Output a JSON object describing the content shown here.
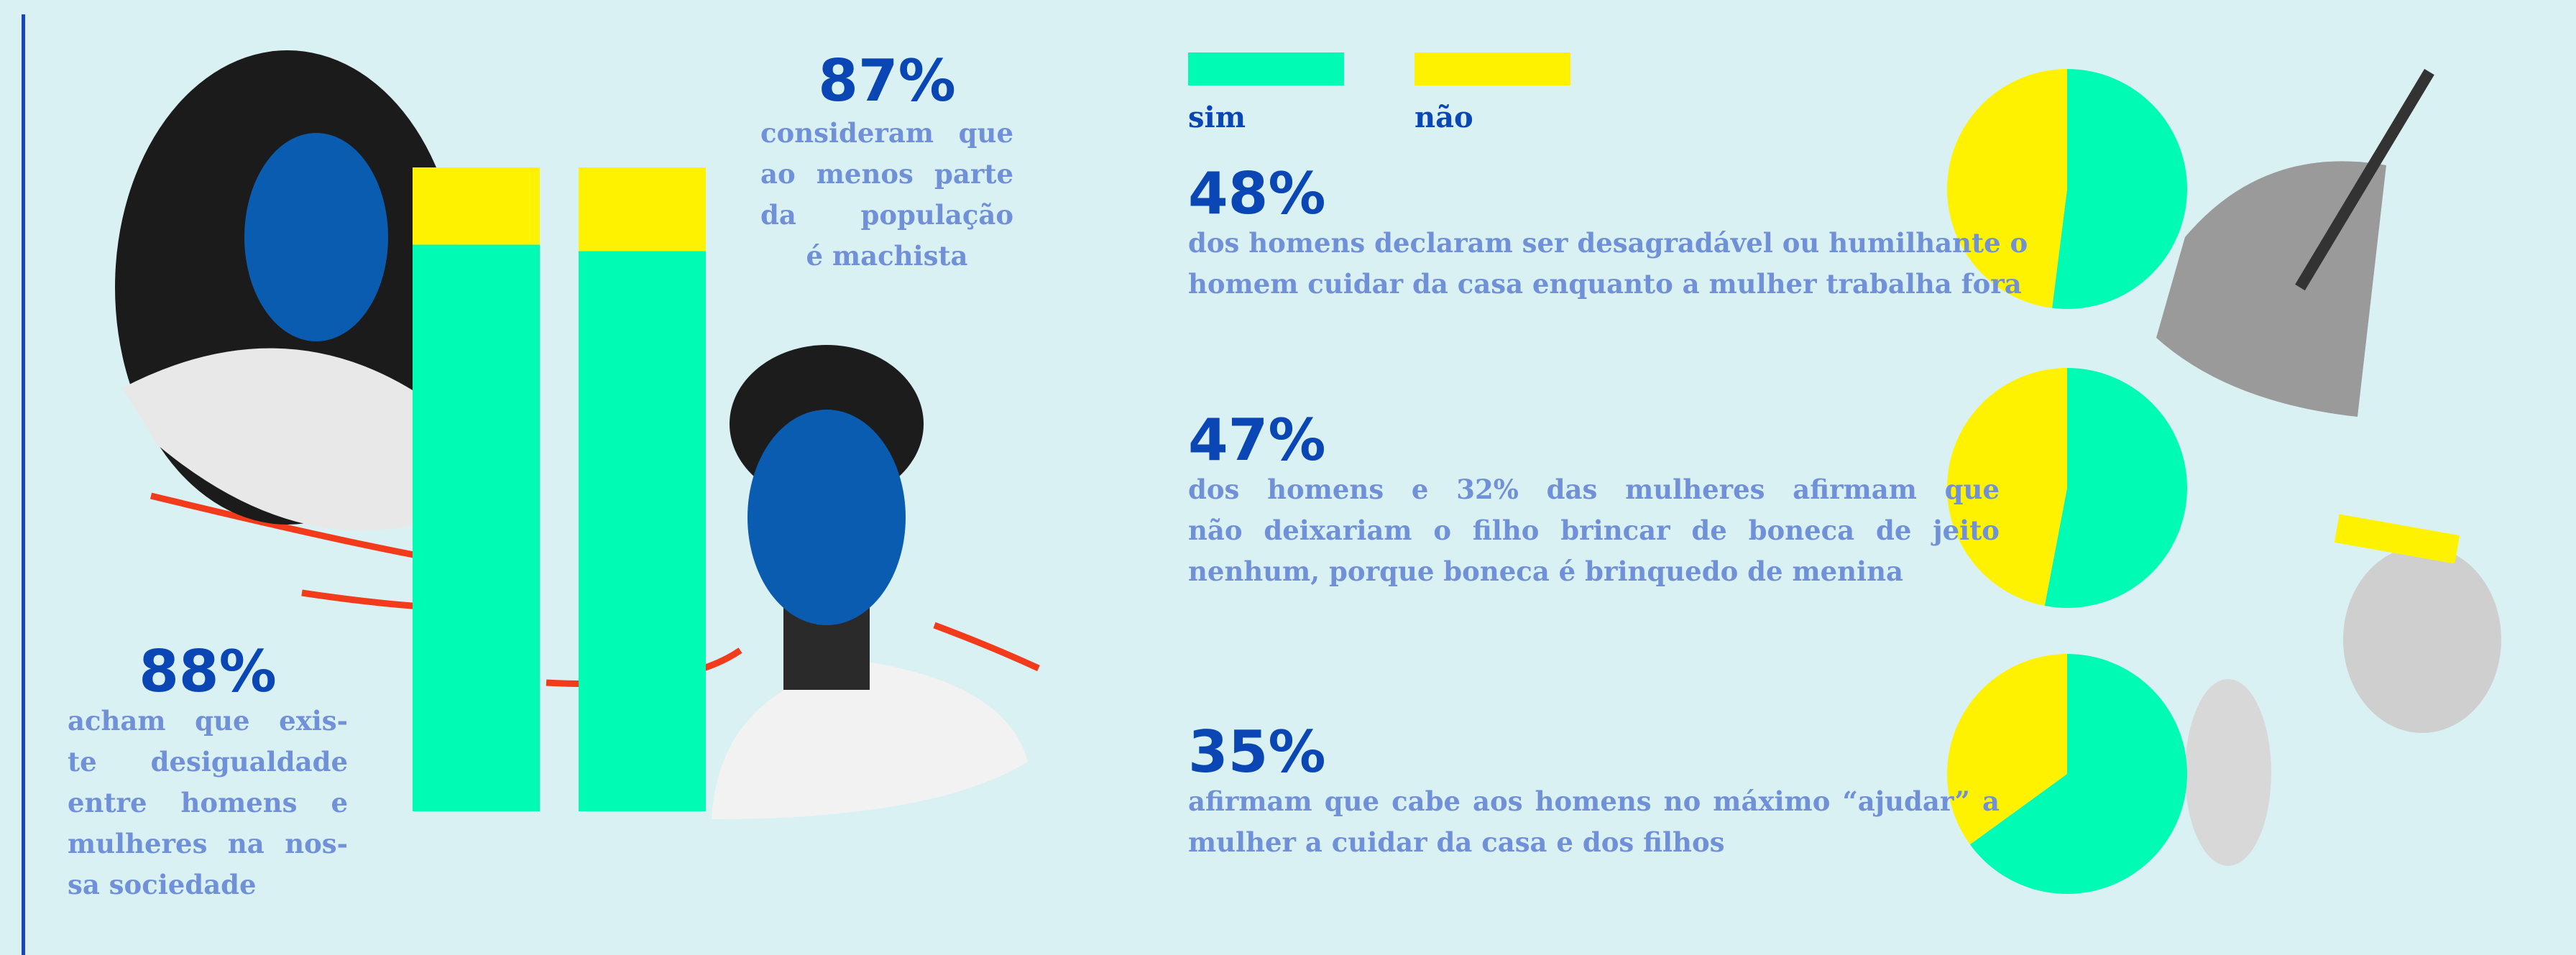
{
  "chart_data": [
    {
      "type": "bar",
      "series": [
        {
          "name": "sim",
          "color": "#00fbb4",
          "values": [
            88,
            87
          ],
          "value_labels": [
            "88%",
            "87%"
          ]
        },
        {
          "name": "não",
          "color": "#fff200",
          "values": [
            12,
            13
          ]
        }
      ],
      "ylim": [
        0,
        100
      ],
      "texts": [
        [
          "acham que exis-",
          "te desigualdade",
          "entre homens e",
          "mulheres na nos-",
          "sa sociedade"
        ],
        [
          "consideram que",
          "ao menos parte",
          "da população",
          "é machista"
        ]
      ]
    },
    {
      "type": "pie",
      "values": [
        52,
        48
      ],
      "colors": [
        "#00fbb4",
        "#fff200"
      ],
      "value_labels": [
        null,
        "48%"
      ],
      "text": [
        "dos homens declaram ser desagradável ou humilhante o",
        "homem cuidar da casa enquanto a mulher trabalha fora"
      ]
    },
    {
      "type": "pie",
      "values": [
        53,
        47
      ],
      "colors": [
        "#00fbb4",
        "#fff200"
      ],
      "value_labels": [
        null,
        "47%"
      ],
      "text": [
        "dos homens e 32% das mulheres afirmam que",
        "não deixariam o filho brincar de boneca de jeito",
        "nenhum, porque boneca é brinquedo de menina"
      ]
    },
    {
      "type": "pie",
      "values": [
        65,
        35
      ],
      "colors": [
        "#00fbb4",
        "#fff200"
      ],
      "value_labels": [
        null,
        "35%"
      ],
      "text": [
        "afirmam que cabe aos homens no máximo “ajudar” a",
        "mulher a cuidar da casa e dos filhos"
      ]
    }
  ]
}
